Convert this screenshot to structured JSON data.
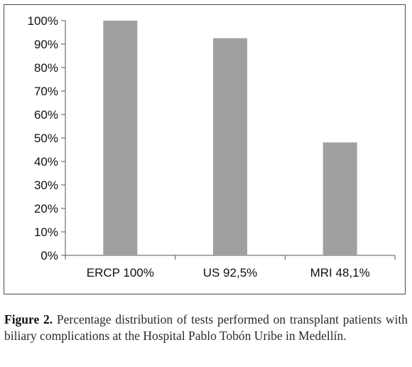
{
  "chart_data": {
    "type": "bar",
    "categories": [
      "ERCP 100%",
      "US 92,5%",
      "MRI 48,1%"
    ],
    "values": [
      100,
      92.5,
      48.1
    ],
    "ylim": [
      0,
      100
    ],
    "yticks": [
      "0%",
      "10%",
      "20%",
      "30%",
      "40%",
      "50%",
      "60%",
      "70%",
      "80%",
      "90%",
      "100%"
    ],
    "grid": false,
    "legend": "none",
    "bar_color": "#a0a0a0"
  },
  "caption": {
    "label": "Figure 2.",
    "text": " Percentage distribution of tests performed on transplant patients with biliary complications at the Hospital Pablo Tobón Uribe in Medellín."
  }
}
